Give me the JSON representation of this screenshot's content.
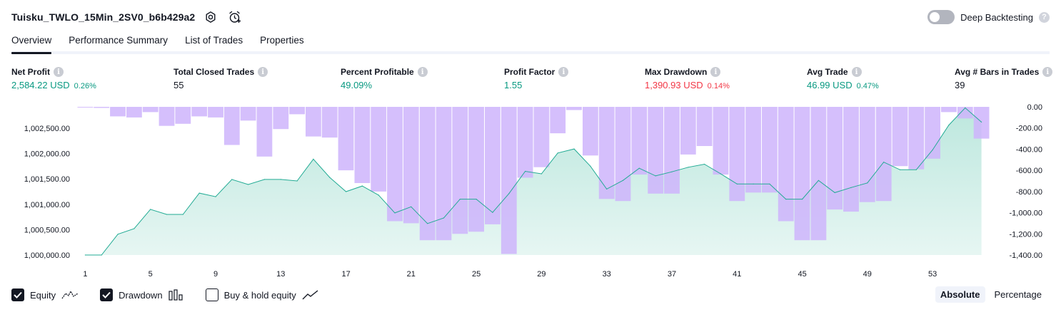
{
  "header": {
    "strategy_name": "Tuisku_TWLO_15Min_2SV0_b6b429a2",
    "settings_icon": "gear-icon",
    "alert_icon": "alarm-clock-plus-icon"
  },
  "deep_backtesting": {
    "label": "Deep Backtesting",
    "enabled": false,
    "help": "?"
  },
  "tabs": [
    {
      "label": "Overview",
      "active": true
    },
    {
      "label": "Performance Summary",
      "active": false
    },
    {
      "label": "List of Trades",
      "active": false
    },
    {
      "label": "Properties",
      "active": false
    }
  ],
  "metrics": {
    "net_profit": {
      "label": "Net Profit",
      "value": "2,584.22 USD",
      "pct": "0.26%"
    },
    "total_closed_trades": {
      "label": "Total Closed Trades",
      "value": "55"
    },
    "percent_profitable": {
      "label": "Percent Profitable",
      "value": "49.09%"
    },
    "profit_factor": {
      "label": "Profit Factor",
      "value": "1.55"
    },
    "max_drawdown": {
      "label": "Max Drawdown",
      "value": "1,390.93 USD",
      "pct": "0.14%"
    },
    "avg_trade": {
      "label": "Avg Trade",
      "value": "46.99 USD",
      "pct": "0.47%"
    },
    "avg_bars": {
      "label": "Avg # Bars in Trades",
      "value": "39"
    }
  },
  "info_glyph": "i",
  "colors": {
    "equity_line": "#22ab94",
    "equity_fill_top": "#b9e6dc",
    "drawdown_bar": "#ceb4fb",
    "positive": "#089981",
    "negative": "#f23645"
  },
  "chart_data": {
    "type": "area+bar",
    "x_ticks": [
      "1",
      "5",
      "9",
      "13",
      "17",
      "21",
      "25",
      "29",
      "33",
      "37",
      "41",
      "45",
      "49",
      "53"
    ],
    "left_axis": {
      "ticks": [
        "1,000,000.00",
        "1,000,500.00",
        "1,001,000.00",
        "1,001,500.00",
        "1,002,000.00",
        "1,002,500.00"
      ],
      "range": [
        1000000,
        1002920
      ]
    },
    "right_axis": {
      "ticks": [
        "0.00",
        "-200.00",
        "-400.00",
        "-600.00",
        "-800.00",
        "-1,000.00",
        "-1,200.00",
        "-1,400.00"
      ],
      "range": [
        0,
        -1400
      ]
    },
    "series": [
      {
        "name": "Equity",
        "x": [
          1,
          2,
          3,
          4,
          5,
          6,
          7,
          8,
          9,
          10,
          11,
          12,
          13,
          14,
          15,
          16,
          17,
          18,
          19,
          20,
          21,
          22,
          23,
          24,
          25,
          26,
          27,
          28,
          29,
          30,
          31,
          32,
          33,
          34,
          35,
          36,
          37,
          38,
          39,
          40,
          41,
          42,
          43,
          44,
          45,
          46,
          47,
          48,
          49,
          50,
          51,
          52,
          53,
          54,
          55,
          56
        ],
        "values": [
          1000000,
          1000000,
          1000410,
          1000520,
          1000900,
          1000800,
          1000800,
          1001220,
          1001150,
          1001490,
          1001390,
          1001490,
          1001490,
          1001460,
          1001890,
          1001530,
          1001250,
          1001360,
          1001180,
          1000830,
          1000950,
          1000620,
          1000730,
          1001100,
          1001100,
          1000840,
          1001210,
          1001650,
          1001600,
          1002010,
          1002090,
          1001750,
          1001300,
          1001470,
          1001710,
          1001560,
          1001640,
          1001730,
          1001790,
          1001600,
          1001400,
          1001400,
          1001400,
          1001100,
          1001100,
          1001470,
          1001230,
          1001330,
          1001420,
          1001830,
          1001680,
          1001680,
          1002070,
          1002560,
          1002900,
          1002620
        ]
      },
      {
        "name": "Drawdown",
        "x": [
          1,
          2,
          3,
          4,
          5,
          6,
          7,
          8,
          9,
          10,
          11,
          12,
          13,
          14,
          15,
          16,
          17,
          18,
          19,
          20,
          21,
          22,
          23,
          24,
          25,
          26,
          27,
          28,
          29,
          30,
          31,
          32,
          33,
          34,
          35,
          36,
          37,
          38,
          39,
          40,
          41,
          42,
          43,
          44,
          45,
          46,
          47,
          48,
          49,
          50,
          51,
          52,
          53,
          54,
          55,
          56
        ],
        "values": [
          0,
          -10,
          -90,
          -100,
          -50,
          -180,
          -160,
          -90,
          -100,
          -360,
          -130,
          -470,
          -210,
          -70,
          -280,
          -290,
          -600,
          -720,
          -800,
          -1080,
          -1100,
          -1260,
          -1260,
          -1200,
          -1180,
          -1110,
          -1390,
          -670,
          -570,
          -250,
          -30,
          -460,
          -870,
          -890,
          -640,
          -820,
          -820,
          -450,
          -370,
          -640,
          -890,
          -810,
          -810,
          -1080,
          -1260,
          -1260,
          -970,
          -990,
          -900,
          -890,
          -560,
          -590,
          -490,
          -50,
          -110,
          -300
        ]
      }
    ]
  },
  "legend": [
    {
      "label": "Equity",
      "checked": true,
      "icon": "equity-line-icon"
    },
    {
      "label": "Drawdown",
      "checked": true,
      "icon": "drawdown-bars-icon"
    },
    {
      "label": "Buy & hold equity",
      "checked": false,
      "icon": "buy-hold-line-icon"
    }
  ],
  "mode": {
    "absolute": "Absolute",
    "percentage": "Percentage",
    "selected": "absolute"
  }
}
